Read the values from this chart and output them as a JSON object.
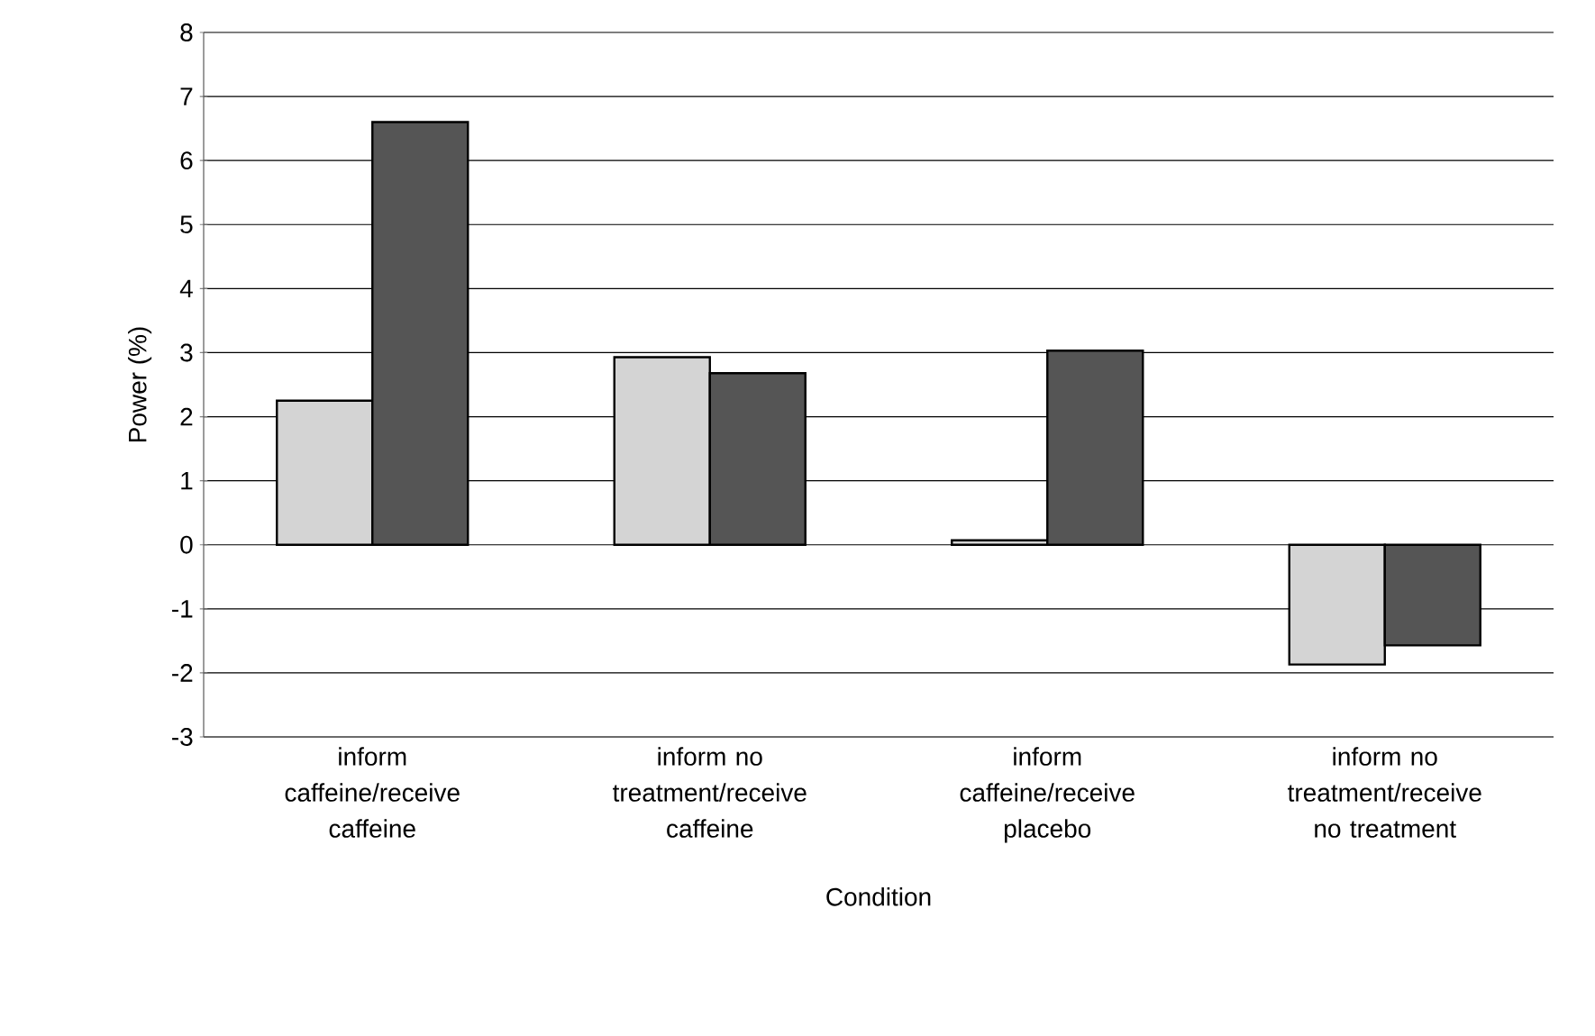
{
  "chart_data": {
    "type": "bar",
    "xlabel": "Condition",
    "ylabel": "Power (%)",
    "categories": [
      "inform caffeine/receive caffeine",
      "inform no treatment/receive caffeine",
      "inform caffeine/receive placebo",
      "inform no treatment/receive no treatment"
    ],
    "series": [
      {
        "color": "#d4d4d4",
        "values": [
          2.25,
          2.93,
          0.07,
          -1.87
        ]
      },
      {
        "color": "#555555",
        "values": [
          6.6,
          2.68,
          3.03,
          -1.57
        ]
      }
    ],
    "ylim": [
      -3,
      8
    ],
    "yticks": [
      -3,
      -2,
      -1,
      0,
      1,
      2,
      3,
      4,
      5,
      6,
      7,
      8
    ],
    "grid": "y"
  }
}
